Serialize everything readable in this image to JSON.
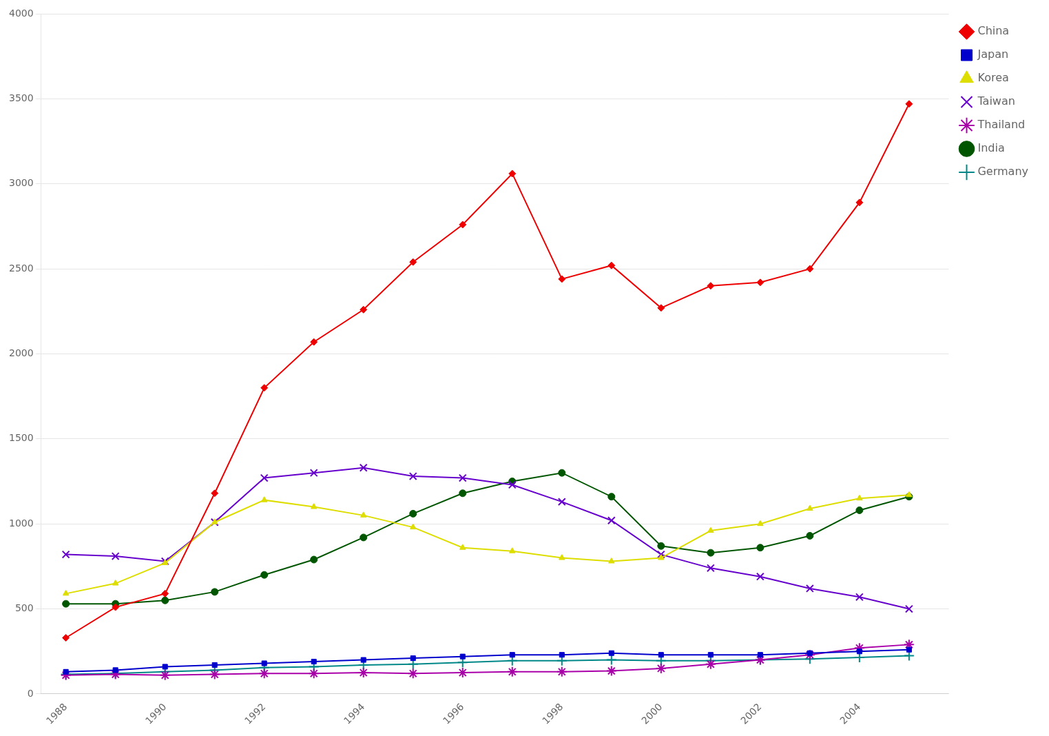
{
  "chart_data": {
    "type": "line",
    "x": [
      1988,
      1989,
      1990,
      1991,
      1992,
      1993,
      1994,
      1995,
      1996,
      1997,
      1998,
      1999,
      2000,
      2001,
      2002,
      2003,
      2004,
      2005
    ],
    "series": [
      {
        "name": "China",
        "color": "#EE0000",
        "marker": "diamond",
        "values": [
          330,
          510,
          590,
          1180,
          1800,
          2070,
          2260,
          2540,
          2760,
          3060,
          2440,
          2520,
          2270,
          2400,
          2420,
          2500,
          2890,
          3470
        ]
      },
      {
        "name": "Japan",
        "color": "#0000CC",
        "marker": "square",
        "values": [
          130,
          140,
          160,
          170,
          180,
          190,
          200,
          210,
          220,
          230,
          230,
          240,
          230,
          230,
          230,
          240,
          250,
          260
        ]
      },
      {
        "name": "Korea",
        "color": "#DDDD00",
        "marker": "triangle",
        "values": [
          590,
          650,
          770,
          1010,
          1140,
          1100,
          1050,
          980,
          860,
          840,
          800,
          780,
          800,
          960,
          1000,
          1090,
          1150,
          1170
        ]
      },
      {
        "name": "Taiwan",
        "color": "#6600CC",
        "marker": "x",
        "values": [
          820,
          810,
          780,
          1010,
          1270,
          1300,
          1330,
          1280,
          1270,
          1230,
          1130,
          1020,
          820,
          740,
          690,
          620,
          570,
          500
        ]
      },
      {
        "name": "Thailand",
        "color": "#AA00AA",
        "marker": "star",
        "values": [
          110,
          115,
          110,
          115,
          120,
          120,
          125,
          120,
          125,
          130,
          130,
          135,
          150,
          175,
          200,
          230,
          270,
          290
        ]
      },
      {
        "name": "India",
        "color": "#005500",
        "marker": "circle",
        "values": [
          530,
          530,
          550,
          600,
          700,
          790,
          920,
          1060,
          1180,
          1250,
          1300,
          1160,
          870,
          830,
          860,
          930,
          1080,
          1160
        ]
      },
      {
        "name": "Germany",
        "color": "#008888",
        "marker": "plus",
        "values": [
          115,
          120,
          130,
          140,
          155,
          160,
          170,
          175,
          185,
          195,
          195,
          200,
          195,
          195,
          200,
          205,
          215,
          225
        ]
      }
    ],
    "xlim": [
      1987.5,
      2005.8
    ],
    "xticks": [
      1988,
      1990,
      1992,
      1994,
      1996,
      1998,
      2000,
      2002,
      2004
    ],
    "ylim": [
      0,
      4000
    ],
    "yticks": [
      0,
      500,
      1000,
      1500,
      2000,
      2500,
      3000,
      3500,
      4000
    ],
    "grid": "y",
    "legend": "right"
  }
}
